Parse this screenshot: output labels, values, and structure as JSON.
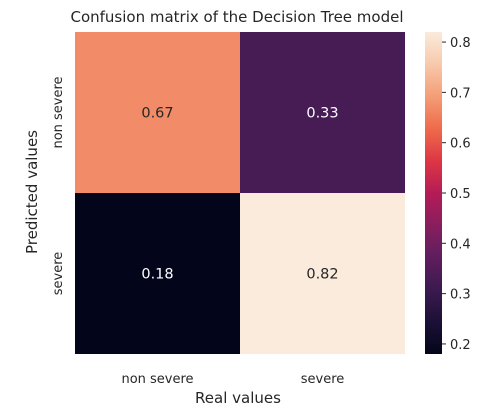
{
  "chart_data": {
    "type": "heatmap",
    "title": "Confusion matrix of the Decision Tree model",
    "xlabel": "Real values",
    "ylabel": "Predicted values",
    "x_categories": [
      "non severe",
      "severe"
    ],
    "y_categories": [
      "non severe",
      "severe"
    ],
    "values": [
      [
        0.67,
        0.33
      ],
      [
        0.18,
        0.82
      ]
    ],
    "value_labels": [
      [
        "0.67",
        "0.33"
      ],
      [
        "0.18",
        "0.82"
      ]
    ],
    "colormap": "rocket",
    "colorbar": {
      "range": [
        0.18,
        0.82
      ],
      "ticks": [
        0.2,
        0.3,
        0.4,
        0.5,
        0.6,
        0.7,
        0.8
      ],
      "tick_labels": [
        "0.2",
        "0.3",
        "0.4",
        "0.5",
        "0.6",
        "0.7",
        "0.8"
      ]
    },
    "cell_label_colors": {
      "dark_cell": "#ffffff",
      "light_cell": "#262626"
    },
    "grid": false
  }
}
